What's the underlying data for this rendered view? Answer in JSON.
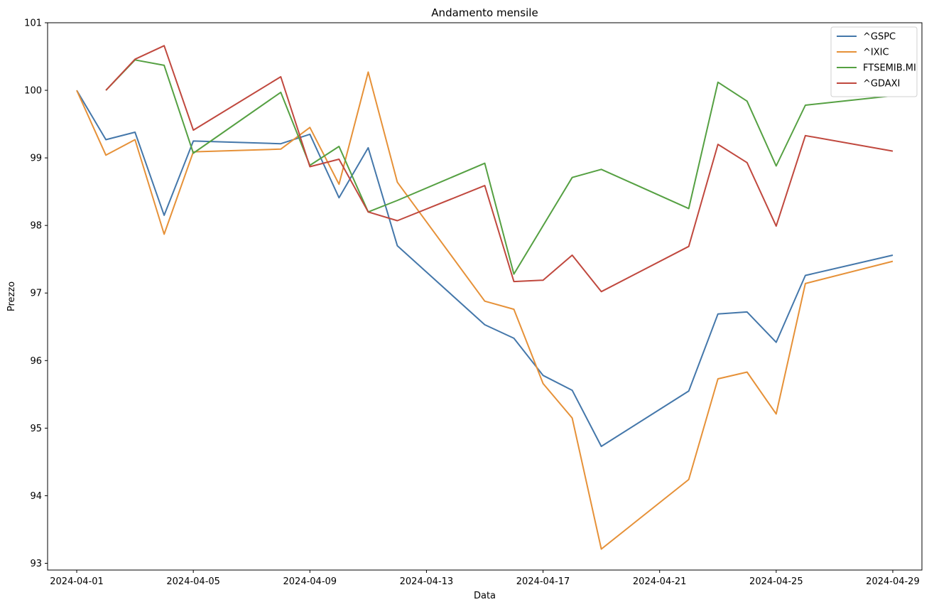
{
  "chart_data": {
    "type": "line",
    "title": "Andamento mensile",
    "xlabel": "Data",
    "ylabel": "Prezzo",
    "ylim": [
      92.9,
      101.0
    ],
    "xlim": [
      "2024-03-31",
      "2024-04-30"
    ],
    "yticks": [
      93,
      94,
      95,
      96,
      97,
      98,
      99,
      100,
      101
    ],
    "xticks": [
      "2024-04-01",
      "2024-04-05",
      "2024-04-09",
      "2024-04-13",
      "2024-04-17",
      "2024-04-21",
      "2024-04-25",
      "2024-04-29"
    ],
    "grid": false,
    "legend_position": "top-right",
    "series": [
      {
        "name": "^GSPC",
        "color": "#4477aa",
        "points": [
          [
            "2024-04-01",
            100.0
          ],
          [
            "2024-04-02",
            99.27
          ],
          [
            "2024-04-03",
            99.38
          ],
          [
            "2024-04-04",
            98.15
          ],
          [
            "2024-04-05",
            99.25
          ],
          [
            "2024-04-08",
            99.21
          ],
          [
            "2024-04-09",
            99.35
          ],
          [
            "2024-04-10",
            98.41
          ],
          [
            "2024-04-11",
            99.15
          ],
          [
            "2024-04-12",
            97.7
          ],
          [
            "2024-04-15",
            96.53
          ],
          [
            "2024-04-16",
            96.33
          ],
          [
            "2024-04-17",
            95.78
          ],
          [
            "2024-04-18",
            95.56
          ],
          [
            "2024-04-19",
            94.73
          ],
          [
            "2024-04-22",
            95.55
          ],
          [
            "2024-04-23",
            96.69
          ],
          [
            "2024-04-24",
            96.72
          ],
          [
            "2024-04-25",
            96.27
          ],
          [
            "2024-04-26",
            97.26
          ],
          [
            "2024-04-29",
            97.56
          ]
        ]
      },
      {
        "name": "^IXIC",
        "color": "#e69138",
        "points": [
          [
            "2024-04-01",
            100.0
          ],
          [
            "2024-04-02",
            99.04
          ],
          [
            "2024-04-03",
            99.27
          ],
          [
            "2024-04-04",
            97.87
          ],
          [
            "2024-04-05",
            99.09
          ],
          [
            "2024-04-08",
            99.13
          ],
          [
            "2024-04-09",
            99.45
          ],
          [
            "2024-04-10",
            98.61
          ],
          [
            "2024-04-11",
            100.27
          ],
          [
            "2024-04-12",
            98.64
          ],
          [
            "2024-04-15",
            96.88
          ],
          [
            "2024-04-16",
            96.76
          ],
          [
            "2024-04-17",
            95.66
          ],
          [
            "2024-04-18",
            95.15
          ],
          [
            "2024-04-19",
            93.21
          ],
          [
            "2024-04-22",
            94.24
          ],
          [
            "2024-04-23",
            95.73
          ],
          [
            "2024-04-24",
            95.83
          ],
          [
            "2024-04-25",
            95.21
          ],
          [
            "2024-04-26",
            97.14
          ],
          [
            "2024-04-29",
            97.47
          ]
        ]
      },
      {
        "name": "FTSEMIB.MI",
        "color": "#55a042",
        "points": [
          [
            "2024-04-02",
            100.0
          ],
          [
            "2024-04-03",
            100.45
          ],
          [
            "2024-04-04",
            100.37
          ],
          [
            "2024-04-05",
            99.07
          ],
          [
            "2024-04-08",
            99.97
          ],
          [
            "2024-04-09",
            98.89
          ],
          [
            "2024-04-10",
            99.17
          ],
          [
            "2024-04-11",
            98.2
          ],
          [
            "2024-04-12",
            98.37
          ],
          [
            "2024-04-15",
            98.92
          ],
          [
            "2024-04-16",
            97.28
          ],
          [
            "2024-04-18",
            98.71
          ],
          [
            "2024-04-19",
            98.83
          ],
          [
            "2024-04-22",
            98.25
          ],
          [
            "2024-04-23",
            100.12
          ],
          [
            "2024-04-24",
            99.84
          ],
          [
            "2024-04-25",
            98.88
          ],
          [
            "2024-04-26",
            99.78
          ],
          [
            "2024-04-29",
            99.92
          ]
        ]
      },
      {
        "name": "^GDAXI",
        "color": "#c0483e",
        "points": [
          [
            "2024-04-02",
            100.0
          ],
          [
            "2024-04-03",
            100.46
          ],
          [
            "2024-04-04",
            100.66
          ],
          [
            "2024-04-05",
            99.41
          ],
          [
            "2024-04-08",
            100.2
          ],
          [
            "2024-04-09",
            98.87
          ],
          [
            "2024-04-10",
            98.98
          ],
          [
            "2024-04-11",
            98.2
          ],
          [
            "2024-04-12",
            98.07
          ],
          [
            "2024-04-15",
            98.59
          ],
          [
            "2024-04-16",
            97.17
          ],
          [
            "2024-04-17",
            97.19
          ],
          [
            "2024-04-18",
            97.56
          ],
          [
            "2024-04-19",
            97.02
          ],
          [
            "2024-04-22",
            97.69
          ],
          [
            "2024-04-23",
            99.2
          ],
          [
            "2024-04-24",
            98.93
          ],
          [
            "2024-04-25",
            97.99
          ],
          [
            "2024-04-26",
            99.33
          ],
          [
            "2024-04-29",
            99.1
          ]
        ]
      }
    ]
  }
}
